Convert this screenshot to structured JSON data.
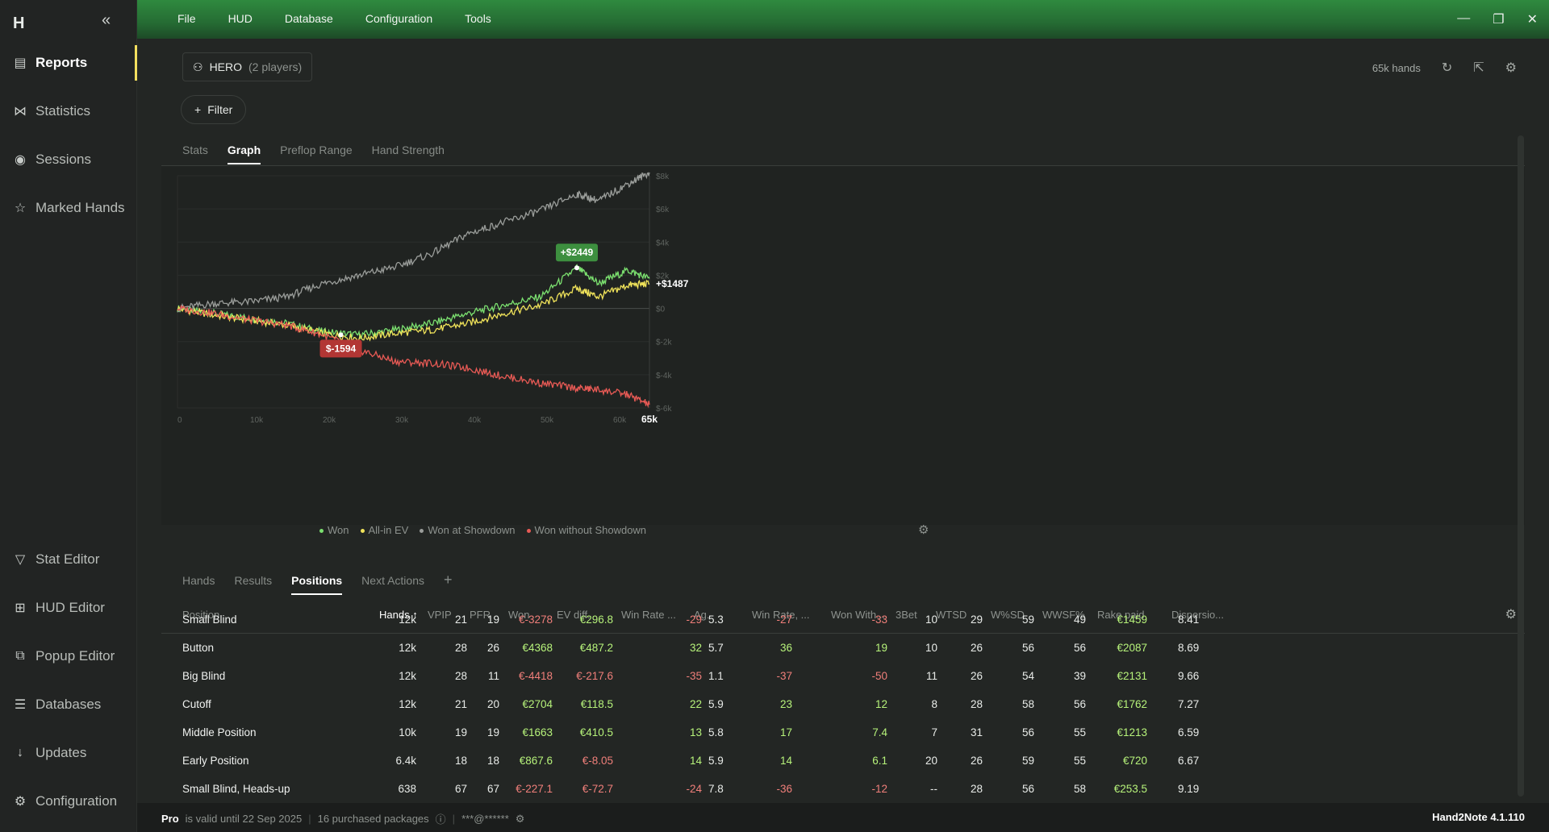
{
  "app": {
    "name": "Hand2Note",
    "version": "Hand2Note 4.1.110",
    "logo_text": "H"
  },
  "sidebar": {
    "collapse_icon": "double-chevron-left",
    "items": [
      {
        "label": "Reports",
        "icon": "reports-icon",
        "active": true
      },
      {
        "label": "Statistics",
        "icon": "statistics-icon"
      },
      {
        "label": "Sessions",
        "icon": "sessions-icon"
      },
      {
        "label": "Marked Hands",
        "icon": "marked-hands-icon"
      },
      {
        "label": "Stat Editor",
        "icon": "filter-icon"
      },
      {
        "label": "HUD Editor",
        "icon": "hud-editor-icon"
      },
      {
        "label": "Popup Editor",
        "icon": "popup-editor-icon"
      },
      {
        "label": "Databases",
        "icon": "database-icon"
      },
      {
        "label": "Updates",
        "icon": "download-icon"
      },
      {
        "label": "Configuration",
        "icon": "gear-icon"
      }
    ]
  },
  "menu": [
    "File",
    "HUD",
    "Database",
    "Configuration",
    "Tools"
  ],
  "header": {
    "hero_label": "HERO",
    "hero_sub": "(2 players)",
    "filter_label": "Filter",
    "hands_count": "65k hands"
  },
  "tabs_top": [
    {
      "label": "Stats"
    },
    {
      "label": "Graph",
      "active": true
    },
    {
      "label": "Preflop Range"
    },
    {
      "label": "Hand Strength"
    }
  ],
  "chart_data": {
    "type": "line",
    "x_ticks": [
      "0",
      "10k",
      "20k",
      "30k",
      "40k",
      "50k",
      "60k",
      "65k"
    ],
    "y_ticks": [
      "$8k",
      "$6k",
      "$4k",
      "$2k",
      "$0",
      "$-2k",
      "$-4k",
      "$-6k"
    ],
    "xlim": [
      0,
      65000
    ],
    "ylim": [
      -6000,
      8000
    ],
    "series": [
      {
        "name": "Won",
        "color": "#7be06f",
        "x": [
          0,
          5000,
          10000,
          15000,
          20000,
          25000,
          30000,
          35000,
          40000,
          45000,
          50000,
          55000,
          58000,
          62000,
          65000
        ],
        "y": [
          0,
          -300,
          -600,
          -900,
          -1400,
          -1600,
          -1300,
          -900,
          -300,
          200,
          700,
          2449,
          1500,
          2300,
          1800
        ]
      },
      {
        "name": "All-in EV",
        "color": "#f0e35a",
        "x": [
          0,
          5000,
          10000,
          15000,
          20000,
          25000,
          30000,
          35000,
          40000,
          45000,
          50000,
          55000,
          58000,
          62000,
          65000
        ],
        "y": [
          0,
          -400,
          -700,
          -1000,
          -1500,
          -1800,
          -1500,
          -1300,
          -900,
          -300,
          200,
          1200,
          700,
          1400,
          1487
        ]
      },
      {
        "name": "Won at Showdown",
        "color": "#9a9d9a",
        "x": [
          0,
          5000,
          10000,
          15000,
          20000,
          25000,
          30000,
          35000,
          40000,
          45000,
          50000,
          55000,
          58000,
          62000,
          65000
        ],
        "y": [
          0,
          300,
          400,
          700,
          1500,
          2000,
          2500,
          3300,
          4500,
          5200,
          5900,
          6900,
          6500,
          7500,
          8200
        ]
      },
      {
        "name": "Won without Showdown",
        "color": "#e85a55",
        "x": [
          0,
          5000,
          10000,
          15000,
          20000,
          25000,
          30000,
          35000,
          40000,
          45000,
          50000,
          55000,
          58000,
          62000,
          65000
        ],
        "y": [
          0,
          -300,
          -700,
          -1000,
          -1594,
          -2500,
          -3200,
          -3300,
          -3600,
          -4100,
          -4500,
          -4800,
          -4900,
          -5200,
          -5800
        ]
      }
    ],
    "annotations": [
      {
        "label": "+$2449",
        "x": 55000,
        "y": 2449,
        "color": "#3d8f3f"
      },
      {
        "label": "$-1594",
        "x": 22500,
        "y": -1594,
        "color": "#b23634"
      },
      {
        "label": "+$1487",
        "x": 65000,
        "y": 1487,
        "color": "none"
      }
    ],
    "legend_position": "bottom-left",
    "grid": true
  },
  "tabs_bottom": [
    {
      "label": "Hands"
    },
    {
      "label": "Results"
    },
    {
      "label": "Positions",
      "active": true
    },
    {
      "label": "Next Actions"
    }
  ],
  "table": {
    "columns": [
      "Position",
      "Hands ↑",
      "VPIP",
      "PFR",
      "Won",
      "EV diff.",
      "Win Rate ...",
      "Ag.",
      "Win Rate, ...",
      "Won With...",
      "3Bet",
      "WTSD",
      "W%SD",
      "WWSF%",
      "Rake paid",
      "Dispersio..."
    ],
    "rows": [
      [
        "Small Blind",
        "12k",
        "21",
        "19",
        "€-3278",
        "€296.8",
        "-29",
        "5.3",
        "-27",
        "-33",
        "10",
        "29",
        "59",
        "49",
        "€1459",
        "8.41"
      ],
      [
        "Button",
        "12k",
        "28",
        "26",
        "€4368",
        "€487.2",
        "32",
        "5.7",
        "36",
        "19",
        "10",
        "26",
        "56",
        "56",
        "€2087",
        "8.69"
      ],
      [
        "Big Blind",
        "12k",
        "28",
        "11",
        "€-4418",
        "€-217.6",
        "-35",
        "1.1",
        "-37",
        "-50",
        "11",
        "26",
        "54",
        "39",
        "€2131",
        "9.66"
      ],
      [
        "Cutoff",
        "12k",
        "21",
        "20",
        "€2704",
        "€118.5",
        "22",
        "5.9",
        "23",
        "12",
        "8",
        "28",
        "58",
        "56",
        "€1762",
        "7.27"
      ],
      [
        "Middle Position",
        "10k",
        "19",
        "19",
        "€1663",
        "€410.5",
        "13",
        "5.8",
        "17",
        "7.4",
        "7",
        "31",
        "56",
        "55",
        "€1213",
        "6.59"
      ],
      [
        "Early Position",
        "6.4k",
        "18",
        "18",
        "€867.6",
        "€-8.05",
        "14",
        "5.9",
        "14",
        "6.1",
        "20",
        "26",
        "59",
        "55",
        "€720",
        "6.67"
      ],
      [
        "Small Blind, Heads-up",
        "638",
        "67",
        "67",
        "€-227.1",
        "€-72.7",
        "-24",
        "7.8",
        "-36",
        "-12",
        "--",
        "28",
        "56",
        "58",
        "€253.5",
        "9.19"
      ]
    ]
  },
  "status": {
    "plan": "Pro",
    "valid_text": "is valid until 22 Sep 2025",
    "packages": "16 purchased packages",
    "account": "***@******"
  },
  "colors": {
    "accent_green": "#2f8a3f",
    "positive_value": "#b6f27a",
    "negative_value": "#f07f7a",
    "active_indicator": "#f3df5e"
  }
}
